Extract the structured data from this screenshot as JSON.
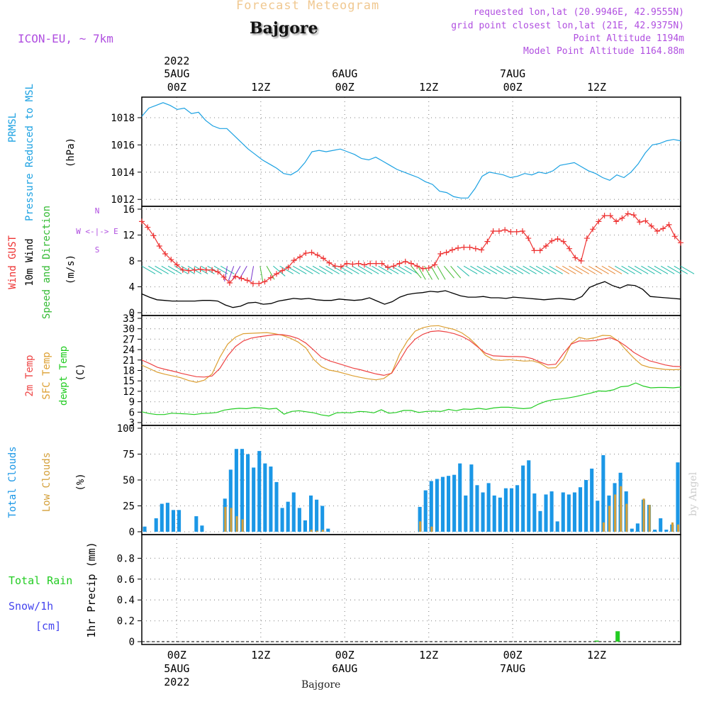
{
  "header": {
    "chart_title": "Forecast Meteogram",
    "location": "Bajgore",
    "model": "ICON-EU, ~ 7km",
    "requested": "requested lon,lat (20.9946E, 42.9555N)",
    "grid_point": "grid point closest lon,lat (21E, 42.9375N)",
    "point_altitude": "Point Altitude 1194m",
    "model_altitude": "Model Point Altitude 1164.88m"
  },
  "footer": {
    "location": "Bajgore",
    "credit": "by Angel"
  },
  "colors": {
    "pressure": "#1ba1e2",
    "gust": "#ee3333",
    "wind": "#000000",
    "direction": "#33bb33",
    "temp": "#ee4444",
    "sfc_temp": "#dda033",
    "dewpt": "#22cc22",
    "total_clouds": "#1b97e6",
    "low_clouds": "#d4a03a",
    "rain": "#22cc22",
    "snow": "#4444ee",
    "title_fade": "#f0c890",
    "info": "#b04fe0"
  },
  "chart_data": [
    {
      "type": "line",
      "panel": "pressure",
      "ylabel_lines": [
        "PRMSL",
        "Pressure Reduced to MSL"
      ],
      "unit": "(hPa)",
      "x_labels_top": [
        {
          "time": "00Z",
          "date": "5AUG",
          "year": "2022"
        },
        {
          "time": "12Z",
          "date": "",
          "year": ""
        },
        {
          "time": "00Z",
          "date": "6AUG",
          "year": ""
        },
        {
          "time": "12Z",
          "date": "",
          "year": ""
        },
        {
          "time": "00Z",
          "date": "7AUG",
          "year": ""
        },
        {
          "time": "12Z",
          "date": "",
          "year": ""
        }
      ],
      "xlim_hours": [
        -5,
        72
      ],
      "ylim": [
        1011.7,
        1019.3
      ],
      "yticks": [
        "1012",
        "1014",
        "1016",
        "1018"
      ],
      "grid": true,
      "series": [
        {
          "values": [
            1018.1,
            1018.7,
            1018.9,
            1019.1,
            1018.9,
            1018.6,
            1018.7,
            1018.3,
            1018.4,
            1017.8,
            1017.4,
            1017.2,
            1017.2,
            1016.7,
            1016.2,
            1015.7,
            1015.3,
            1014.9,
            1014.6,
            1014.3,
            1013.9,
            1013.8,
            1014.1,
            1014.7,
            1015.5,
            1015.6,
            1015.5,
            1015.6,
            1015.7,
            1015.5,
            1015.3,
            1015.0,
            1014.9,
            1015.1,
            1014.8,
            1014.5,
            1014.2,
            1014.0,
            1013.8,
            1013.6,
            1013.3,
            1013.1,
            1012.6,
            1012.5,
            1012.2,
            1012.1,
            1012.1,
            1012.8,
            1013.7,
            1014.0,
            1013.9,
            1013.8,
            1013.6,
            1013.7,
            1013.9,
            1013.8,
            1014.0,
            1013.9,
            1014.1,
            1014.5,
            1014.6,
            1014.7,
            1014.4,
            1014.1,
            1013.9,
            1013.6,
            1013.4,
            1013.8,
            1013.6,
            1014.0,
            1014.6,
            1015.4,
            1016.0,
            1016.1,
            1016.3,
            1016.4,
            1016.3
          ]
        }
      ]
    },
    {
      "type": "line",
      "panel": "wind",
      "ylabel_lines": [
        "Wind GUST",
        "10m Wind",
        "Speed and Direction"
      ],
      "unit": "(m/s)",
      "compass": [
        "N",
        "W <-|-> E",
        "S"
      ],
      "ylim": [
        0,
        16
      ],
      "yticks": [
        "0",
        "4",
        "8",
        "12",
        "16"
      ],
      "gust": [
        14.1,
        13.2,
        11.9,
        10.3,
        9.1,
        8.2,
        7.4,
        6.6,
        6.5,
        6.6,
        6.7,
        6.6,
        6.6,
        6.3,
        5.5,
        4.6,
        5.6,
        5.3,
        5.0,
        4.5,
        4.5,
        4.8,
        5.4,
        6.0,
        6.5,
        7.0,
        8.1,
        8.6,
        9.2,
        9.3,
        8.9,
        8.4,
        7.7,
        7.2,
        7.1,
        7.6,
        7.5,
        7.6,
        7.4,
        7.6,
        7.6,
        7.6,
        7.0,
        7.2,
        7.6,
        7.9,
        7.6,
        7.2,
        6.8,
        6.9,
        7.4,
        9.1,
        9.3,
        9.7,
        10.0,
        10.1,
        10.1,
        9.9,
        9.7,
        11.0,
        12.6,
        12.6,
        12.8,
        12.5,
        12.5,
        12.6,
        11.5,
        9.6,
        9.6,
        10.3,
        11.1,
        11.4,
        11.0,
        9.9,
        8.5,
        8.0,
        11.5,
        12.9,
        14.1,
        15.0,
        15.0,
        14.1,
        14.6,
        15.3,
        15.1,
        14.0,
        14.2,
        13.4,
        12.6,
        13.0,
        13.6,
        11.8,
        10.8
      ],
      "wind": [
        2.9,
        2.4,
        2.0,
        1.9,
        1.8,
        1.8,
        1.8,
        1.8,
        1.9,
        1.9,
        1.8,
        1.2,
        0.8,
        1.0,
        1.5,
        1.6,
        1.3,
        1.4,
        1.8,
        2.0,
        2.2,
        2.1,
        2.2,
        2.0,
        1.9,
        1.9,
        2.1,
        2.0,
        1.9,
        2.0,
        2.3,
        1.8,
        1.3,
        1.7,
        2.4,
        2.8,
        3.0,
        3.1,
        3.3,
        3.2,
        3.4,
        3.0,
        2.6,
        2.4,
        2.4,
        2.5,
        2.3,
        2.3,
        2.2,
        2.4,
        2.3,
        2.2,
        2.1,
        2.0,
        2.1,
        2.2,
        2.1,
        2.0,
        2.5,
        3.9,
        4.4,
        4.8,
        4.2,
        3.8,
        4.3,
        4.2,
        3.6,
        2.5,
        2.4,
        2.3,
        2.2,
        2.1
      ],
      "barb_directions_deg": [
        30,
        30,
        30,
        30,
        30,
        30,
        30,
        30,
        30,
        30,
        30,
        30,
        30,
        100,
        110,
        120,
        120,
        100,
        80,
        60,
        40,
        30,
        30,
        30,
        30,
        30,
        30,
        30,
        30,
        30,
        30,
        30,
        30,
        30,
        30,
        30,
        30,
        30,
        30,
        30,
        30,
        50,
        60,
        60,
        60,
        60,
        50,
        50,
        40,
        30,
        30,
        30,
        30,
        30,
        30,
        30,
        30,
        30,
        30,
        30,
        30,
        30,
        30,
        30,
        30,
        30,
        30,
        30,
        30,
        30,
        30,
        30,
        30,
        30,
        30,
        30,
        30,
        30,
        30,
        30,
        30,
        30,
        30
      ]
    },
    {
      "type": "line",
      "panel": "temperature",
      "ylabel_lines": [
        "2m Temp",
        "SFC Temp",
        "dewpt Temp"
      ],
      "unit": "(C)",
      "ylim": [
        3,
        33
      ],
      "yticks": [
        "3",
        "6",
        "9",
        "12",
        "15",
        "18",
        "21",
        "24",
        "27",
        "30",
        "33"
      ],
      "series": [
        {
          "name": "2m Temp",
          "values": [
            21.0,
            20.0,
            18.9,
            18.3,
            17.8,
            17.2,
            16.7,
            16.2,
            16.1,
            16.4,
            18.6,
            22.2,
            24.9,
            26.5,
            27.3,
            27.7,
            28.0,
            28.3,
            28.3,
            27.9,
            27.2,
            25.9,
            23.9,
            21.8,
            20.8,
            20.1,
            19.4,
            18.7,
            18.2,
            17.6,
            17.0,
            16.6,
            17.2,
            20.8,
            24.5,
            27.0,
            28.4,
            29.2,
            29.4,
            29.1,
            28.6,
            27.8,
            26.6,
            24.8,
            23.0,
            22.2,
            22.1,
            22.0,
            22.0,
            21.9,
            21.4,
            20.4,
            19.6,
            19.8,
            22.9,
            25.6,
            26.5,
            26.5,
            26.6,
            27.0,
            27.4,
            26.5,
            25.0,
            23.2,
            21.9,
            20.8,
            20.2,
            19.6,
            19.2,
            19.1
          ]
        },
        {
          "name": "SFC Temp",
          "values": [
            19.5,
            18.5,
            17.5,
            16.9,
            16.4,
            15.9,
            15.1,
            14.6,
            15.2,
            17.0,
            21.8,
            25.6,
            27.6,
            28.6,
            28.7,
            28.8,
            28.9,
            28.6,
            28.1,
            27.3,
            26.2,
            24.5,
            21.2,
            19.1,
            18.1,
            17.7,
            17.1,
            16.5,
            16.0,
            15.6,
            15.3,
            15.7,
            17.3,
            22.7,
            26.5,
            29.3,
            30.3,
            30.8,
            30.9,
            30.3,
            29.8,
            28.8,
            27.2,
            25.0,
            22.4,
            21.1,
            20.9,
            21.1,
            20.9,
            20.7,
            20.8,
            20.1,
            18.7,
            18.8,
            21.2,
            25.8,
            27.5,
            27.0,
            27.4,
            28.1,
            28.0,
            26.5,
            23.9,
            21.6,
            19.6,
            18.9,
            18.6,
            18.3,
            18.2,
            18.3
          ]
        },
        {
          "name": "dewpt Temp",
          "values": [
            6.1,
            5.6,
            5.3,
            5.3,
            5.7,
            5.6,
            5.5,
            5.3,
            5.6,
            5.7,
            5.9,
            6.6,
            6.9,
            7.1,
            7.0,
            7.3,
            7.2,
            6.9,
            7.1,
            5.4,
            6.2,
            6.4,
            6.1,
            5.8,
            5.2,
            4.9,
            5.8,
            5.9,
            5.8,
            6.2,
            6.1,
            5.8,
            6.7,
            5.7,
            5.9,
            6.5,
            6.5,
            5.9,
            6.2,
            6.3,
            6.2,
            6.8,
            6.4,
            6.9,
            6.8,
            7.1,
            6.8,
            7.2,
            7.4,
            7.4,
            7.2,
            7.0,
            7.2,
            8.3,
            9.1,
            9.6,
            9.8,
            10.1,
            10.5,
            11.0,
            11.5,
            12.1,
            12.0,
            12.4,
            13.3,
            13.5,
            14.4,
            13.5,
            13.0,
            13.1,
            13.1,
            13.0,
            13.2
          ]
        }
      ]
    },
    {
      "type": "bar",
      "panel": "clouds",
      "ylabel_lines": [
        "Total Clouds",
        "Low Clouds"
      ],
      "unit": "(%)",
      "ylim": [
        0,
        100
      ],
      "yticks": [
        "0",
        "25",
        "50",
        "75",
        "100"
      ],
      "series": [
        {
          "name": "Total Clouds",
          "values": [
            5,
            0,
            13,
            27,
            28,
            21,
            21,
            0,
            0,
            15,
            6,
            0,
            0,
            0,
            32,
            60,
            80,
            80,
            75,
            62,
            78,
            66,
            63,
            48,
            23,
            29,
            38,
            23,
            11,
            35,
            31,
            25,
            3,
            0,
            0,
            0,
            0,
            0,
            0,
            0,
            0,
            0,
            0,
            0,
            0,
            0,
            0,
            0,
            24,
            40,
            49,
            51,
            53,
            54,
            55,
            66,
            35,
            65,
            45,
            38,
            47,
            35,
            33,
            42,
            42,
            45,
            64,
            69,
            37,
            20,
            36,
            39,
            10,
            38,
            36,
            38,
            43,
            50,
            61,
            30,
            74,
            35,
            47,
            57,
            39,
            3,
            8,
            31,
            26,
            2,
            13,
            2,
            7,
            67
          ]
        },
        {
          "name": "Low Clouds",
          "values": [
            0,
            0,
            0,
            0,
            0,
            0,
            0,
            0,
            0,
            0,
            0,
            0,
            0,
            0,
            24,
            23,
            15,
            12,
            0,
            0,
            0,
            0,
            0,
            0,
            0,
            0,
            0,
            0,
            0,
            2,
            1,
            2,
            0,
            0,
            0,
            0,
            0,
            0,
            0,
            0,
            0,
            0,
            0,
            0,
            0,
            0,
            0,
            0,
            10,
            0,
            5,
            0,
            0,
            0,
            0,
            0,
            0,
            0,
            0,
            0,
            0,
            0,
            0,
            0,
            0,
            0,
            0,
            0,
            0,
            0,
            0,
            0,
            0,
            0,
            0,
            0,
            0,
            0,
            0,
            0,
            9,
            25,
            36,
            44,
            27,
            0,
            0,
            32,
            26,
            0,
            0,
            0,
            9,
            7
          ]
        }
      ]
    },
    {
      "type": "bar",
      "panel": "precip",
      "labels": [
        "Total  Rain",
        "Snow/1h",
        "[cm]"
      ],
      "ylabel": "1hr Precip (mm)",
      "ylim": [
        0,
        1.0
      ],
      "yticks": [
        "0",
        "0.2",
        "0.4",
        "0.6",
        "0.8"
      ],
      "x_labels_bottom": [
        {
          "time": "00Z",
          "date": "5AUG",
          "year": "2022"
        },
        {
          "time": "12Z",
          "date": "",
          "year": ""
        },
        {
          "time": "00Z",
          "date": "6AUG",
          "year": ""
        },
        {
          "time": "12Z",
          "date": "",
          "year": ""
        },
        {
          "time": "00Z",
          "date": "7AUG",
          "year": ""
        },
        {
          "time": "12Z",
          "date": "",
          "year": ""
        }
      ],
      "series": [
        {
          "name": "Total Rain",
          "bars": [
            {
              "hour": 60,
              "value": 0.01
            },
            {
              "hour": 63,
              "value": 0.1
            }
          ]
        }
      ]
    }
  ]
}
